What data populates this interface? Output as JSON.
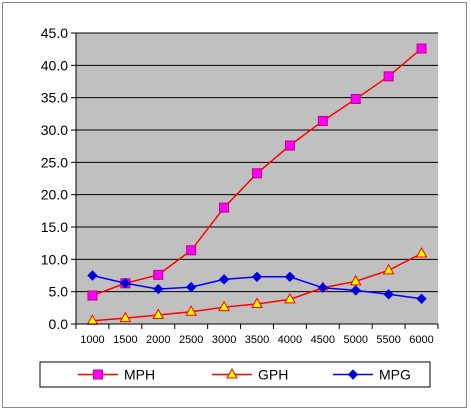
{
  "chart_data": {
    "type": "line",
    "title": "",
    "xlabel": "",
    "ylabel": "",
    "x": [
      1000,
      1500,
      2000,
      2500,
      3000,
      3500,
      4000,
      4500,
      5000,
      5500,
      6000
    ],
    "x_tick_labels": [
      "1000",
      "1500",
      "2000",
      "2500",
      "3000",
      "3500",
      "4000",
      "4500",
      "5000",
      "5500",
      "6000"
    ],
    "ylim": [
      0,
      45
    ],
    "y_ticks": [
      0,
      5,
      10,
      15,
      20,
      25,
      30,
      35,
      40,
      45
    ],
    "y_tick_labels": [
      "0.0",
      "5.0",
      "10.0",
      "15.0",
      "20.0",
      "25.0",
      "30.0",
      "35.0",
      "40.0",
      "45.0"
    ],
    "grid": true,
    "legend_position": "bottom",
    "plot_background": "#c0c0c0",
    "series": [
      {
        "name": "MPH",
        "color": "#ff0000",
        "marker": "square",
        "marker_fill": "#ff00ff",
        "values": [
          4.4,
          6.3,
          7.6,
          11.4,
          18.0,
          23.3,
          27.6,
          31.4,
          34.8,
          38.3,
          42.6
        ]
      },
      {
        "name": "GPH",
        "color": "#ff0000",
        "marker": "triangle",
        "marker_fill": "#ffff00",
        "values": [
          0.5,
          0.9,
          1.4,
          1.9,
          2.6,
          3.1,
          3.8,
          5.6,
          6.6,
          8.3,
          10.9
        ]
      },
      {
        "name": "MPG",
        "color": "#0000ff",
        "marker": "diamond",
        "marker_fill": "#0000cc",
        "values": [
          7.5,
          6.3,
          5.4,
          5.7,
          6.9,
          7.3,
          7.3,
          5.6,
          5.2,
          4.6,
          3.9
        ]
      }
    ]
  }
}
